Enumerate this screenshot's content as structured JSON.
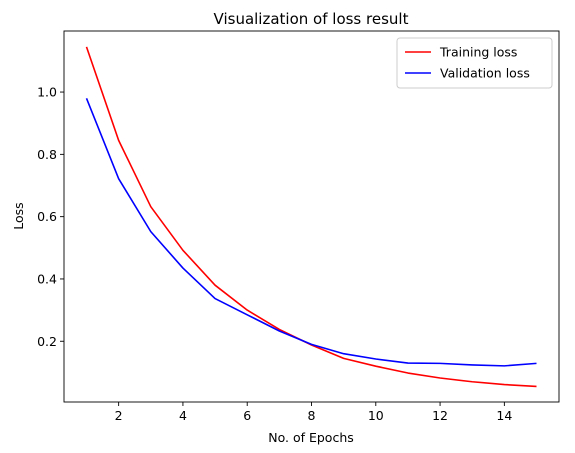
{
  "chart_data": {
    "type": "line",
    "title": "Visualization of loss result",
    "xlabel": "No. of Epochs",
    "ylabel": "Loss",
    "x": [
      1,
      2,
      3,
      4,
      5,
      6,
      7,
      8,
      9,
      10,
      11,
      12,
      13,
      14,
      15
    ],
    "xlim": [
      0.3,
      15.7
    ],
    "ylim": [
      0.005,
      1.196
    ],
    "xticks": [
      2,
      4,
      6,
      8,
      10,
      12,
      14
    ],
    "yticks": [
      0.2,
      0.4,
      0.6,
      0.8,
      1.0
    ],
    "xtick_labels": [
      "2",
      "4",
      "6",
      "8",
      "10",
      "12",
      "14"
    ],
    "ytick_labels": [
      "0.2",
      "0.4",
      "0.6",
      "0.8",
      "1.0"
    ],
    "grid": false,
    "legend_position": "top-right",
    "series": [
      {
        "name": "Training loss",
        "color": "#ff0000",
        "values": [
          1.145,
          0.845,
          0.632,
          0.492,
          0.38,
          0.3,
          0.238,
          0.188,
          0.145,
          0.12,
          0.098,
          0.082,
          0.07,
          0.061,
          0.055
        ]
      },
      {
        "name": "Validation loss",
        "color": "#0000ff",
        "values": [
          0.98,
          0.722,
          0.552,
          0.435,
          0.337,
          0.285,
          0.233,
          0.19,
          0.16,
          0.143,
          0.13,
          0.129,
          0.124,
          0.121,
          0.129
        ]
      }
    ]
  }
}
